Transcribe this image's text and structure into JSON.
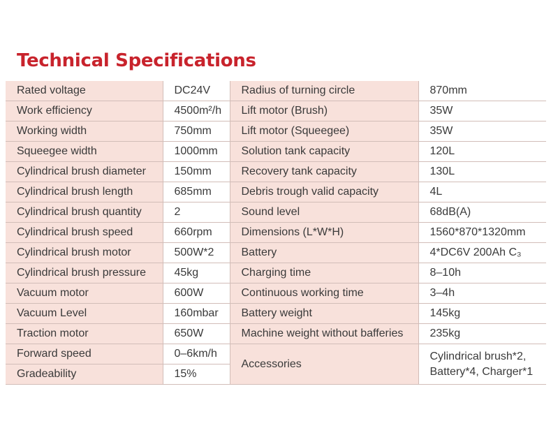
{
  "title": "Technical Specifications",
  "rows": [
    [
      "Rated voltage",
      "DC24V",
      "Radius of turning circle",
      "870mm"
    ],
    [
      "Work efficiency",
      "4500m²/h",
      "Lift motor (Brush)",
      "35W"
    ],
    [
      "Working width",
      "750mm",
      "Lift motor (Squeegee)",
      "35W"
    ],
    [
      "Squeegee width",
      "1000mm",
      "Solution tank capacity",
      "120L"
    ],
    [
      "Cylindrical brush diameter",
      "150mm",
      "Recovery  tank capacity",
      "130L"
    ],
    [
      "Cylindrical brush length",
      "685mm",
      "Debris trough valid capacity",
      "4L"
    ],
    [
      "Cylindrical brush quantity",
      "2",
      "Sound level",
      "68dB(A)"
    ],
    [
      "Cylindrical brush speed",
      "660rpm",
      "Dimensions (L*W*H)",
      "1560*870*1320mm"
    ],
    [
      "Cylindrical brush motor",
      "500W*2",
      "Battery",
      "4*DC6V 200Ah C₃"
    ],
    [
      "Cylindrical brush pressure",
      "45kg",
      "Charging time",
      "8–10h"
    ],
    [
      "Vacuum motor",
      "600W",
      "Continuous working time",
      "3–4h"
    ],
    [
      "Vacuum Level",
      "160mbar",
      "Battery weight",
      "145kg"
    ],
    [
      "Traction motor",
      "650W",
      "Machine weight without bafferies",
      "235kg"
    ]
  ],
  "tail_left": [
    [
      "Forward speed",
      "0–6km/h"
    ],
    [
      "Gradeability",
      "15%"
    ]
  ],
  "tail_right": [
    "Accessories",
    "Cylindrical brush*2, Battery*4, Charger*1"
  ]
}
